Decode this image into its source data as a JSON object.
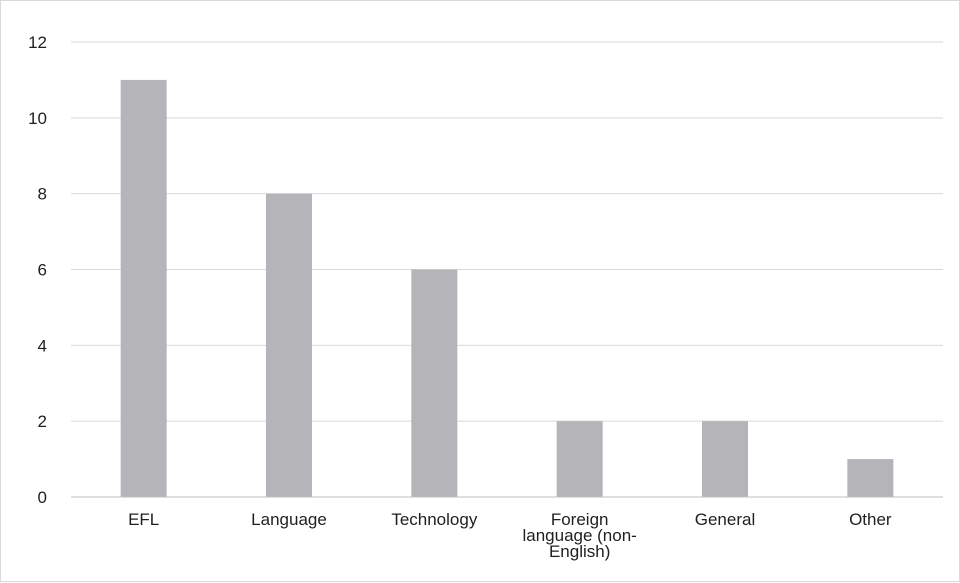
{
  "chart_data": {
    "type": "bar",
    "title": "",
    "xlabel": "",
    "ylabel": "",
    "categories": [
      "EFL",
      "Language",
      "Technology",
      "Foreign language (non-English)",
      "General",
      "Other"
    ],
    "category_lines": [
      [
        "EFL"
      ],
      [
        "Language"
      ],
      [
        "Technology"
      ],
      [
        "Foreign",
        "language (non-",
        "English)"
      ],
      [
        "General"
      ],
      [
        "Other"
      ]
    ],
    "values": [
      11,
      8,
      6,
      2,
      2,
      1
    ],
    "ylim": [
      0,
      12
    ],
    "yticks": [
      0,
      2,
      4,
      6,
      8,
      10,
      12
    ],
    "grid": true,
    "legend": "none",
    "bar_color": "#b5b5b9",
    "gridline_color": "#d9d9d9",
    "axis_color": "#bfbfbf"
  }
}
